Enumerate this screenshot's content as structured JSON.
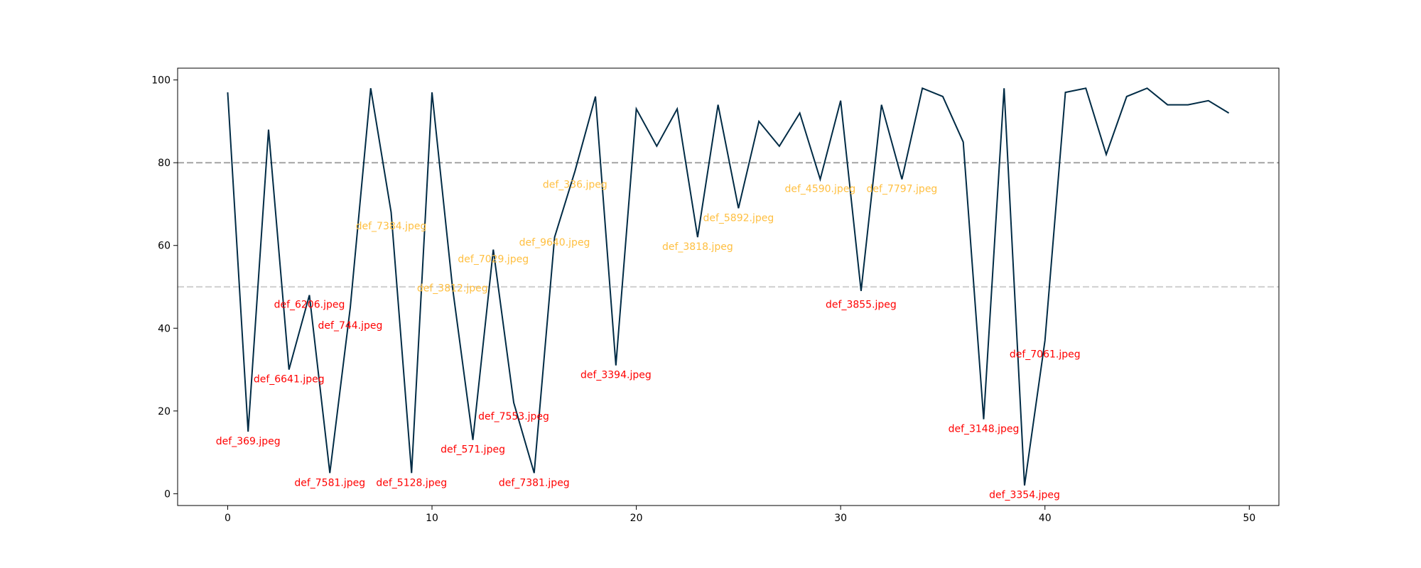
{
  "chart_data": {
    "type": "line",
    "title": "",
    "xlabel": "",
    "ylabel": "",
    "xlim": [
      -2.45,
      51.45
    ],
    "ylim": [
      -2.85,
      102.85
    ],
    "xticks": [
      0,
      10,
      20,
      30,
      40,
      50
    ],
    "yticks": [
      0,
      20,
      40,
      60,
      80,
      100
    ],
    "grid": false,
    "legend": "none",
    "x": [
      0,
      1,
      2,
      3,
      4,
      5,
      6,
      7,
      8,
      9,
      10,
      11,
      12,
      13,
      14,
      15,
      16,
      17,
      18,
      19,
      20,
      21,
      22,
      23,
      24,
      25,
      26,
      27,
      28,
      29,
      30,
      31,
      32,
      33,
      34,
      35,
      36,
      37,
      38,
      39,
      40,
      41,
      42,
      43,
      44,
      45,
      46,
      47,
      48,
      49
    ],
    "series": [
      {
        "color": "#002b45",
        "values": [
          97,
          15,
          88,
          30,
          48,
          5,
          45,
          98,
          68,
          5,
          97,
          50,
          13,
          59,
          22,
          5,
          62,
          78,
          96,
          31,
          93,
          84,
          93,
          62,
          94,
          69,
          90,
          84,
          92,
          76,
          95,
          49,
          94,
          76,
          98,
          96,
          85,
          18,
          98,
          2,
          37,
          97,
          98,
          82,
          96,
          98,
          94,
          94,
          95,
          92
        ]
      }
    ],
    "thresholds": [
      {
        "value": 80,
        "color": "#a9a9a9"
      },
      {
        "value": 50,
        "color": "#d3d3d3"
      }
    ],
    "annotations": [
      {
        "x": 1,
        "y": 15,
        "text": "def_369.jpeg",
        "color": "#ff0000"
      },
      {
        "x": 3,
        "y": 30,
        "text": "def_6641.jpeg",
        "color": "#ff0000"
      },
      {
        "x": 4,
        "y": 48,
        "text": "def_6206.jpeg",
        "color": "#ff0000"
      },
      {
        "x": 5,
        "y": 5,
        "text": "def_7581.jpeg",
        "color": "#ff0000"
      },
      {
        "x": 6,
        "y": 43,
        "text": "def_744.jpeg",
        "color": "#ff0000"
      },
      {
        "x": 8,
        "y": 67,
        "text": "def_7384.jpeg",
        "color": "#ffbf40"
      },
      {
        "x": 9,
        "y": 5,
        "text": "def_5128.jpeg",
        "color": "#ff0000"
      },
      {
        "x": 11,
        "y": 52,
        "text": "def_3812.jpeg",
        "color": "#ffbf40"
      },
      {
        "x": 12,
        "y": 13,
        "text": "def_571.jpeg",
        "color": "#ff0000"
      },
      {
        "x": 13,
        "y": 59,
        "text": "def_7029.jpeg",
        "color": "#ffbf40"
      },
      {
        "x": 14,
        "y": 21,
        "text": "def_7553.jpeg",
        "color": "#ff0000"
      },
      {
        "x": 15,
        "y": 5,
        "text": "def_7381.jpeg",
        "color": "#ff0000"
      },
      {
        "x": 16,
        "y": 63,
        "text": "def_9640.jpeg",
        "color": "#ffbf40"
      },
      {
        "x": 17,
        "y": 77,
        "text": "def_336.jpeg",
        "color": "#ffbf40"
      },
      {
        "x": 19,
        "y": 31,
        "text": "def_3394.jpeg",
        "color": "#ff0000"
      },
      {
        "x": 23,
        "y": 62,
        "text": "def_3818.jpeg",
        "color": "#ffbf40"
      },
      {
        "x": 25,
        "y": 69,
        "text": "def_5892.jpeg",
        "color": "#ffbf40"
      },
      {
        "x": 29,
        "y": 76,
        "text": "def_4590.jpeg",
        "color": "#ffbf40"
      },
      {
        "x": 31,
        "y": 48,
        "text": "def_3855.jpeg",
        "color": "#ff0000"
      },
      {
        "x": 33,
        "y": 76,
        "text": "def_7797.jpeg",
        "color": "#ffbf40"
      },
      {
        "x": 37,
        "y": 18,
        "text": "def_3148.jpeg",
        "color": "#ff0000"
      },
      {
        "x": 39,
        "y": 2,
        "text": "def_3354.jpeg",
        "color": "#ff0000"
      },
      {
        "x": 40,
        "y": 36,
        "text": "def_7061.jpeg",
        "color": "#ff0000"
      }
    ]
  }
}
